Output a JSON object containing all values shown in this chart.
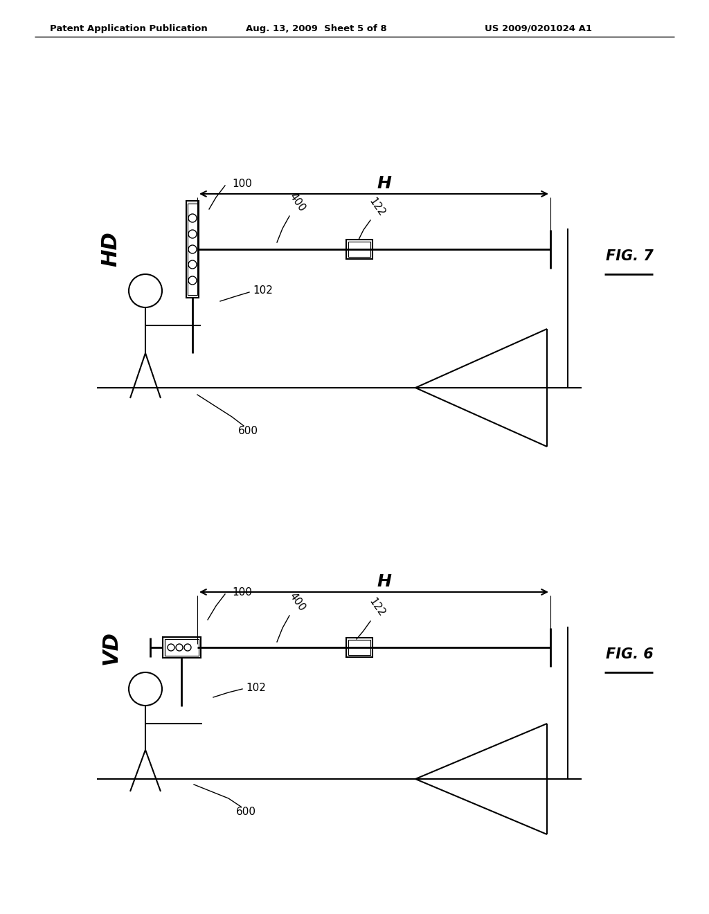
{
  "bg_color": "#ffffff",
  "header_text": "Patent Application Publication",
  "header_date": "Aug. 13, 2009  Sheet 5 of 8",
  "header_patent": "US 2009/0201024 A1",
  "fig7_label": "FIG. 7",
  "fig6_label": "FIG. 6",
  "label_HD": "HD",
  "label_VD": "VD",
  "label_H": "H",
  "label_100": "100",
  "label_400": "400",
  "label_122": "122",
  "label_102": "102",
  "label_600": "600",
  "line_color": "#000000",
  "bg_color2": "#ffffff"
}
